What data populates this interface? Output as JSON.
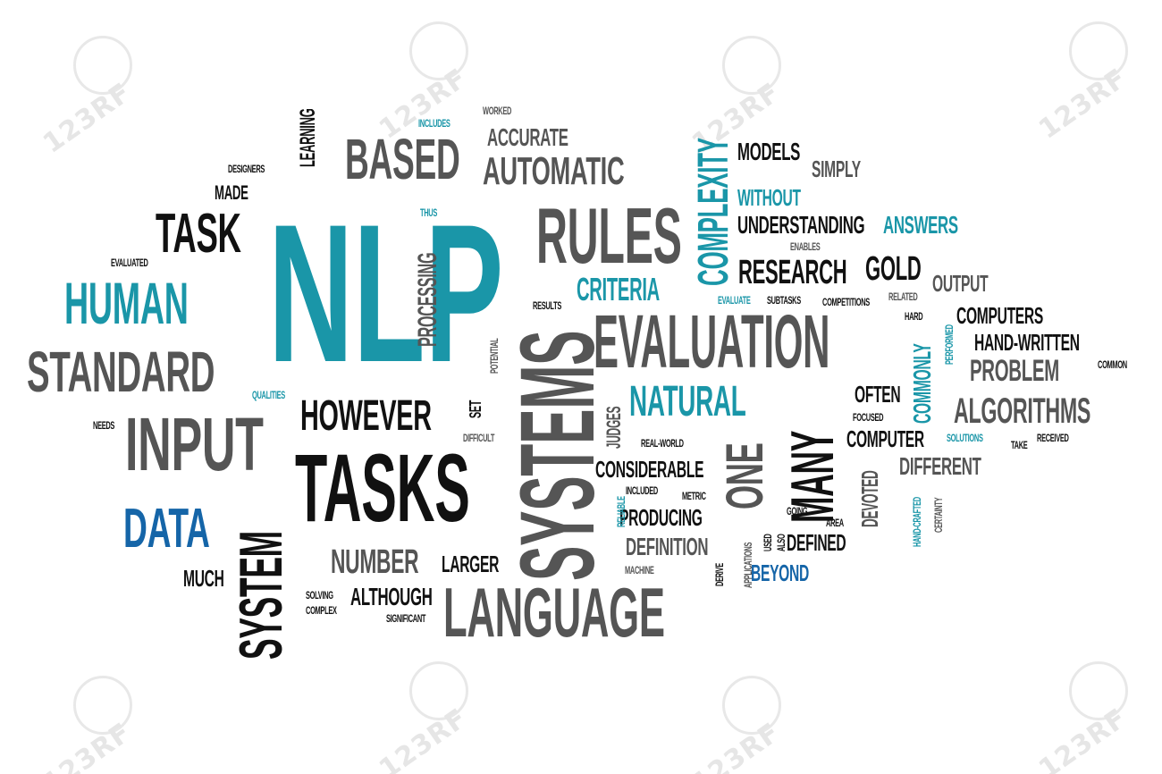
{
  "watermark": {
    "text": "123RF",
    "color": "#e6e6e6"
  },
  "colors": {
    "black": "#111111",
    "gray": "#555555",
    "teal": "#1a96a8",
    "blue": "#1565a8"
  },
  "words": [
    "NLP",
    "EVALUATION",
    "LANGUAGE",
    "TASKS",
    "INPUT",
    "SYSTEMS",
    "SYSTEM",
    "BASED",
    "RULES",
    "HUMAN",
    "STANDARD",
    "DATA",
    "TASK",
    "HOWEVER",
    "NATURAL",
    "ONE",
    "MANY",
    "RESEARCH",
    "GOLD",
    "AUTOMATIC",
    "ACCURATE",
    "CRITERIA",
    "COMPLEXITY",
    "MODELS",
    "SIMPLY",
    "WITHOUT",
    "UNDERSTANDING",
    "ANSWERS",
    "OUTPUT",
    "COMPUTERS",
    "HAND-WRITTEN",
    "PROBLEM",
    "ALGORITHMS",
    "COMPUTER",
    "DIFFERENT",
    "OFTEN",
    "COMMONLY",
    "CONSIDERABLE",
    "PRODUCING",
    "DEFINITION",
    "DEFINED",
    "BEYOND",
    "NUMBER",
    "LARGER",
    "ALTHOUGH",
    "MUCH",
    "PROCESSING",
    "LEARNING",
    "MADE",
    "DEVOTED",
    "JUDGES",
    "SET",
    "EVALUATED",
    "DESIGNERS",
    "INCLUDES",
    "WORKED",
    "THUS",
    "RESULTS",
    "POTENTIAL",
    "EVALUATE",
    "SUBTASKS",
    "COMPETITIONS",
    "RELATED",
    "ENABLES",
    "HARD",
    "PERFORMED",
    "COMMON",
    "SOLUTIONS",
    "TAKE",
    "RECEIVED",
    "FOCUSED",
    "REAL-WORLD",
    "INCLUDED",
    "METRIC",
    "RELIABLE",
    "MACHINE",
    "GOING",
    "AREA",
    "USED",
    "ALSO",
    "APPLICATIONS",
    "DERIVE",
    "HAND-CRAFTED",
    "CERTAINTY",
    "QUALITIES",
    "NEEDS",
    "DIFFICULT",
    "SOLVING",
    "COMPLEX",
    "SIGNIFICANT"
  ]
}
